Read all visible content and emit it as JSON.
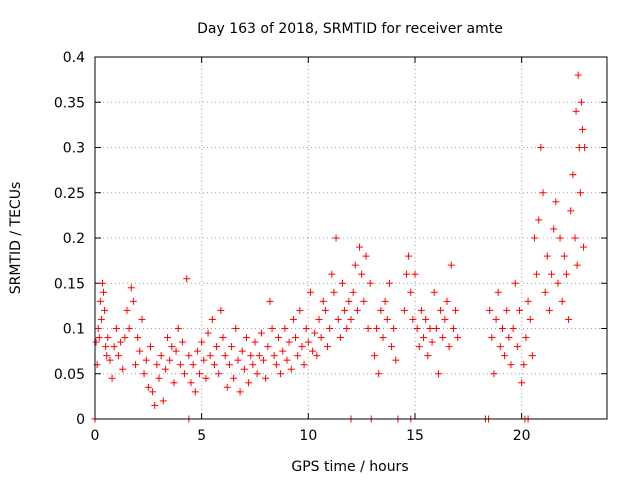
{
  "chart_data": {
    "type": "scatter",
    "title": "Day 163 of 2018, SRMTID for receiver amte",
    "xlabel": "GPS time / hours",
    "ylabel": "SRMTID / TECUs",
    "xlim": [
      0,
      24
    ],
    "ylim": [
      0,
      0.4
    ],
    "x_ticks": [
      0,
      5,
      10,
      15,
      20
    ],
    "x_tick_labels": [
      "0",
      "5",
      "10",
      "15",
      "20"
    ],
    "y_ticks": [
      0,
      0.05,
      0.1,
      0.15,
      0.2,
      0.25,
      0.3,
      0.35,
      0.4
    ],
    "y_tick_labels": [
      "0",
      "0.05",
      "0.1",
      "0.15",
      "0.2",
      "0.25",
      "0.3",
      "0.35",
      "0.4"
    ],
    "grid": true,
    "marker": "+",
    "color": "#ff0000",
    "series": [
      {
        "name": "SRMTID",
        "points": [
          [
            0.05,
            0.085
          ],
          [
            0.1,
            0.06
          ],
          [
            0.15,
            0.1
          ],
          [
            0.2,
            0.09
          ],
          [
            0.25,
            0.13
          ],
          [
            0.3,
            0.11
          ],
          [
            0.35,
            0.15
          ],
          [
            0.4,
            0.14
          ],
          [
            0.45,
            0.12
          ],
          [
            0.5,
            0.08
          ],
          [
            0.55,
            0.07
          ],
          [
            0.6,
            0.09
          ],
          [
            0.7,
            0.065
          ],
          [
            0.8,
            0.045
          ],
          [
            0.9,
            0.08
          ],
          [
            1.0,
            0.1
          ],
          [
            1.1,
            0.07
          ],
          [
            1.2,
            0.085
          ],
          [
            1.3,
            0.055
          ],
          [
            1.4,
            0.09
          ],
          [
            1.5,
            0.12
          ],
          [
            1.6,
            0.1
          ],
          [
            1.7,
            0.145
          ],
          [
            1.8,
            0.13
          ],
          [
            1.9,
            0.06
          ],
          [
            2.0,
            0.09
          ],
          [
            2.1,
            0.075
          ],
          [
            2.2,
            0.11
          ],
          [
            2.3,
            0.05
          ],
          [
            2.4,
            0.065
          ],
          [
            2.5,
            0.035
          ],
          [
            2.6,
            0.08
          ],
          [
            2.7,
            0.03
          ],
          [
            2.8,
            0.015
          ],
          [
            2.9,
            0.06
          ],
          [
            3.0,
            0.045
          ],
          [
            3.1,
            0.07
          ],
          [
            3.2,
            0.02
          ],
          [
            3.3,
            0.055
          ],
          [
            3.4,
            0.09
          ],
          [
            3.5,
            0.065
          ],
          [
            3.6,
            0.08
          ],
          [
            3.7,
            0.04
          ],
          [
            3.8,
            0.075
          ],
          [
            3.9,
            0.1
          ],
          [
            4.0,
            0.06
          ],
          [
            4.1,
            0.085
          ],
          [
            4.2,
            0.05
          ],
          [
            4.3,
            0.155
          ],
          [
            4.4,
            0.07
          ],
          [
            4.5,
            0.04
          ],
          [
            4.6,
            0.06
          ],
          [
            4.7,
            0.03
          ],
          [
            4.8,
            0.075
          ],
          [
            4.9,
            0.05
          ],
          [
            5.0,
            0.085
          ],
          [
            5.1,
            0.065
          ],
          [
            5.2,
            0.045
          ],
          [
            5.3,
            0.095
          ],
          [
            5.4,
            0.07
          ],
          [
            5.5,
            0.11
          ],
          [
            5.6,
            0.06
          ],
          [
            5.7,
            0.08
          ],
          [
            5.8,
            0.05
          ],
          [
            5.9,
            0.12
          ],
          [
            6.0,
            0.09
          ],
          [
            6.1,
            0.07
          ],
          [
            6.2,
            0.035
          ],
          [
            6.3,
            0.06
          ],
          [
            6.4,
            0.08
          ],
          [
            6.5,
            0.045
          ],
          [
            6.6,
            0.1
          ],
          [
            6.7,
            0.065
          ],
          [
            6.8,
            0.03
          ],
          [
            6.9,
            0.075
          ],
          [
            7.0,
            0.055
          ],
          [
            7.1,
            0.09
          ],
          [
            7.2,
            0.04
          ],
          [
            7.3,
            0.07
          ],
          [
            7.4,
            0.06
          ],
          [
            7.5,
            0.085
          ],
          [
            7.6,
            0.05
          ],
          [
            7.7,
            0.07
          ],
          [
            7.8,
            0.095
          ],
          [
            7.9,
            0.065
          ],
          [
            8.0,
            0.045
          ],
          [
            8.1,
            0.08
          ],
          [
            8.2,
            0.13
          ],
          [
            8.3,
            0.1
          ],
          [
            8.4,
            0.07
          ],
          [
            8.5,
            0.06
          ],
          [
            8.6,
            0.09
          ],
          [
            8.7,
            0.05
          ],
          [
            8.8,
            0.075
          ],
          [
            8.9,
            0.1
          ],
          [
            9.0,
            0.065
          ],
          [
            9.1,
            0.085
          ],
          [
            9.2,
            0.055
          ],
          [
            9.3,
            0.11
          ],
          [
            9.4,
            0.09
          ],
          [
            9.5,
            0.07
          ],
          [
            9.6,
            0.12
          ],
          [
            9.7,
            0.08
          ],
          [
            9.8,
            0.06
          ],
          [
            9.9,
            0.1
          ],
          [
            10.0,
            0.085
          ],
          [
            10.1,
            0.14
          ],
          [
            10.2,
            0.075
          ],
          [
            10.3,
            0.095
          ],
          [
            10.4,
            0.07
          ],
          [
            10.5,
            0.11
          ],
          [
            10.6,
            0.09
          ],
          [
            10.7,
            0.13
          ],
          [
            10.8,
            0.12
          ],
          [
            10.9,
            0.08
          ],
          [
            11.0,
            0.1
          ],
          [
            11.1,
            0.16
          ],
          [
            11.2,
            0.14
          ],
          [
            11.3,
            0.2
          ],
          [
            11.4,
            0.11
          ],
          [
            11.5,
            0.09
          ],
          [
            11.6,
            0.15
          ],
          [
            11.7,
            0.12
          ],
          [
            11.8,
            0.1
          ],
          [
            11.9,
            0.13
          ],
          [
            12.0,
            0.11
          ],
          [
            12.1,
            0.14
          ],
          [
            12.2,
            0.17
          ],
          [
            12.3,
            0.12
          ],
          [
            12.4,
            0.19
          ],
          [
            12.5,
            0.16
          ],
          [
            12.6,
            0.13
          ],
          [
            12.7,
            0.18
          ],
          [
            12.8,
            0.1
          ],
          [
            12.9,
            0.15
          ],
          [
            13.1,
            0.07
          ],
          [
            13.2,
            0.1
          ],
          [
            13.3,
            0.05
          ],
          [
            13.4,
            0.12
          ],
          [
            13.5,
            0.09
          ],
          [
            13.6,
            0.13
          ],
          [
            13.7,
            0.11
          ],
          [
            13.8,
            0.15
          ],
          [
            13.9,
            0.08
          ],
          [
            14.0,
            0.1
          ],
          [
            14.1,
            0.065
          ],
          [
            14.5,
            0.12
          ],
          [
            14.6,
            0.16
          ],
          [
            14.7,
            0.18
          ],
          [
            14.8,
            0.14
          ],
          [
            14.9,
            0.11
          ],
          [
            15.0,
            0.16
          ],
          [
            15.1,
            0.1
          ],
          [
            15.2,
            0.08
          ],
          [
            15.3,
            0.12
          ],
          [
            15.4,
            0.09
          ],
          [
            15.5,
            0.11
          ],
          [
            15.6,
            0.07
          ],
          [
            15.7,
            0.1
          ],
          [
            15.8,
            0.085
          ],
          [
            15.9,
            0.14
          ],
          [
            16.0,
            0.1
          ],
          [
            16.1,
            0.05
          ],
          [
            16.2,
            0.12
          ],
          [
            16.3,
            0.09
          ],
          [
            16.4,
            0.11
          ],
          [
            16.5,
            0.13
          ],
          [
            16.6,
            0.08
          ],
          [
            16.7,
            0.17
          ],
          [
            16.8,
            0.1
          ],
          [
            16.9,
            0.12
          ],
          [
            17.0,
            0.09
          ],
          [
            18.5,
            0.12
          ],
          [
            18.6,
            0.09
          ],
          [
            18.7,
            0.05
          ],
          [
            18.8,
            0.11
          ],
          [
            18.9,
            0.14
          ],
          [
            19.0,
            0.08
          ],
          [
            19.1,
            0.1
          ],
          [
            19.2,
            0.07
          ],
          [
            19.3,
            0.12
          ],
          [
            19.4,
            0.09
          ],
          [
            19.5,
            0.06
          ],
          [
            19.6,
            0.1
          ],
          [
            19.7,
            0.15
          ],
          [
            19.8,
            0.08
          ],
          [
            19.9,
            0.12
          ],
          [
            20.0,
            0.04
          ],
          [
            20.1,
            0.06
          ],
          [
            20.2,
            0.09
          ],
          [
            20.3,
            0.13
          ],
          [
            20.4,
            0.11
          ],
          [
            20.5,
            0.07
          ],
          [
            20.6,
            0.2
          ],
          [
            20.7,
            0.16
          ],
          [
            20.8,
            0.22
          ],
          [
            20.9,
            0.3
          ],
          [
            21.0,
            0.25
          ],
          [
            21.1,
            0.14
          ],
          [
            21.2,
            0.18
          ],
          [
            21.3,
            0.12
          ],
          [
            21.4,
            0.16
          ],
          [
            21.5,
            0.21
          ],
          [
            21.6,
            0.24
          ],
          [
            21.7,
            0.15
          ],
          [
            21.8,
            0.2
          ],
          [
            21.9,
            0.13
          ],
          [
            22.0,
            0.18
          ],
          [
            22.1,
            0.16
          ],
          [
            22.2,
            0.11
          ],
          [
            22.3,
            0.23
          ],
          [
            22.4,
            0.27
          ],
          [
            22.5,
            0.2
          ],
          [
            22.55,
            0.34
          ],
          [
            22.6,
            0.17
          ],
          [
            22.65,
            0.38
          ],
          [
            22.7,
            0.3
          ],
          [
            22.75,
            0.25
          ],
          [
            22.8,
            0.35
          ],
          [
            22.85,
            0.32
          ],
          [
            22.9,
            0.19
          ],
          [
            22.95,
            0.3
          ],
          [
            0.0,
            0.0
          ],
          [
            4.4,
            0.0
          ],
          [
            12.0,
            0.0
          ],
          [
            12.95,
            0.0
          ],
          [
            14.2,
            0.0
          ],
          [
            14.8,
            0.0
          ],
          [
            18.3,
            0.0
          ],
          [
            18.45,
            0.0
          ],
          [
            20.15,
            0.0
          ],
          [
            20.3,
            0.0
          ]
        ]
      }
    ]
  }
}
